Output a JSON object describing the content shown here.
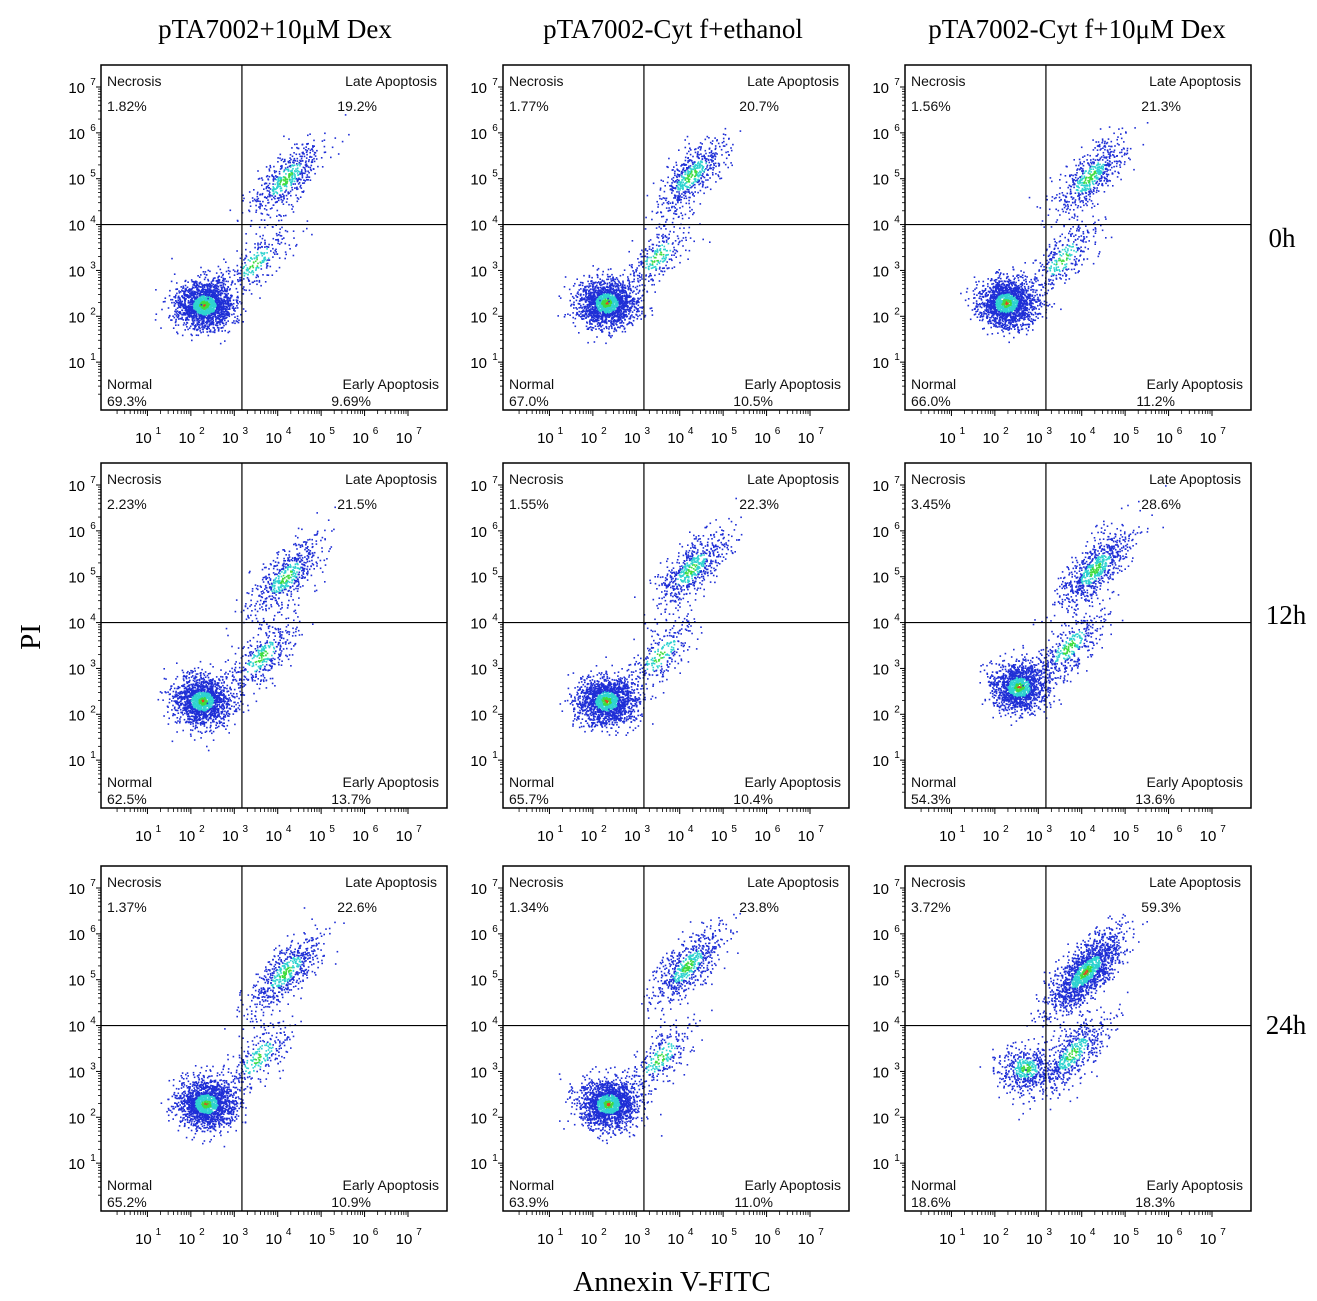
{
  "figure": {
    "column_titles": [
      "pTA7002+10μM Dex",
      "pTA7002-Cyt f+ethanol",
      "pTA7002-Cyt f+10μM Dex"
    ],
    "row_labels": [
      "0h",
      "12h",
      "24h"
    ],
    "ylabel": "PI",
    "xlabel": "Annexin V-FITC",
    "quadrant_names": {
      "top_left": "Necrosis",
      "top_right": "Late Apoptosis",
      "bottom_left": "Normal",
      "bottom_right": "Early Apoptosis"
    },
    "colors": {
      "low_density": "#1f2fd6",
      "mid_density": "#2fd3d0",
      "high_density": "#3fdc3f",
      "peak_density": "#e2451e",
      "frame": "#000000"
    }
  },
  "chart_data": [
    {
      "type": "scatter",
      "panel": "pTA7002+10μM Dex / 0h",
      "x_scale": "log",
      "y_scale": "log",
      "xlim": [
        1,
        10000000
      ],
      "ylim": [
        1,
        10000000
      ],
      "x_ticks": [
        10,
        100,
        1000,
        10000,
        100000,
        1000000,
        10000000
      ],
      "y_ticks": [
        10,
        100,
        1000,
        10000,
        100000,
        1000000,
        10000000
      ],
      "gate_x": 1500,
      "gate_y": 10000,
      "quadrants": {
        "necrosis": "1.82%",
        "late_apoptosis": "19.2%",
        "normal": "69.3%",
        "early_apoptosis": "9.69%"
      },
      "populations": [
        {
          "center": [
            200,
            180
          ],
          "share": 0.7
        },
        {
          "center": [
            15000,
            100000
          ],
          "share": 0.2
        },
        {
          "center": [
            3000,
            1500
          ],
          "share": 0.1
        }
      ]
    },
    {
      "type": "scatter",
      "panel": "pTA7002-Cyt f+ethanol / 0h",
      "x_scale": "log",
      "y_scale": "log",
      "xlim": [
        1,
        10000000
      ],
      "ylim": [
        1,
        10000000
      ],
      "x_ticks": [
        10,
        100,
        1000,
        10000,
        100000,
        1000000,
        10000000
      ],
      "y_ticks": [
        10,
        100,
        1000,
        10000,
        100000,
        1000000,
        10000000
      ],
      "gate_x": 1500,
      "gate_y": 10000,
      "quadrants": {
        "necrosis": "1.77%",
        "late_apoptosis": "20.7%",
        "normal": "67.0%",
        "early_apoptosis": "10.5%"
      },
      "populations": [
        {
          "center": [
            200,
            200
          ],
          "share": 0.67
        },
        {
          "center": [
            18000,
            120000
          ],
          "share": 0.22
        },
        {
          "center": [
            3000,
            2000
          ],
          "share": 0.11
        }
      ]
    },
    {
      "type": "scatter",
      "panel": "pTA7002-Cyt f+10μM Dex / 0h",
      "x_scale": "log",
      "y_scale": "log",
      "xlim": [
        1,
        10000000
      ],
      "ylim": [
        1,
        10000000
      ],
      "x_ticks": [
        10,
        100,
        1000,
        10000,
        100000,
        1000000,
        10000000
      ],
      "y_ticks": [
        10,
        100,
        1000,
        10000,
        100000,
        1000000,
        10000000
      ],
      "gate_x": 1500,
      "gate_y": 10000,
      "quadrants": {
        "necrosis": "1.56%",
        "late_apoptosis": "21.3%",
        "normal": "66.0%",
        "early_apoptosis": "11.2%"
      },
      "populations": [
        {
          "center": [
            180,
            200
          ],
          "share": 0.66
        },
        {
          "center": [
            15000,
            110000
          ],
          "share": 0.22
        },
        {
          "center": [
            3500,
            1800
          ],
          "share": 0.12
        }
      ]
    },
    {
      "type": "scatter",
      "panel": "pTA7002+10μM Dex / 12h",
      "x_scale": "log",
      "y_scale": "log",
      "xlim": [
        1,
        10000000
      ],
      "ylim": [
        1,
        10000000
      ],
      "x_ticks": [
        10,
        100,
        1000,
        10000,
        100000,
        1000000,
        10000000
      ],
      "y_ticks": [
        10,
        100,
        1000,
        10000,
        100000,
        1000000,
        10000000
      ],
      "gate_x": 1500,
      "gate_y": 10000,
      "quadrants": {
        "necrosis": "2.23%",
        "late_apoptosis": "21.5%",
        "normal": "62.5%",
        "early_apoptosis": "13.7%"
      },
      "populations": [
        {
          "center": [
            180,
            200
          ],
          "share": 0.63
        },
        {
          "center": [
            15000,
            100000
          ],
          "share": 0.22
        },
        {
          "center": [
            4000,
            1800
          ],
          "share": 0.15
        }
      ]
    },
    {
      "type": "scatter",
      "panel": "pTA7002-Cyt f+ethanol / 12h",
      "x_scale": "log",
      "y_scale": "log",
      "xlim": [
        1,
        10000000
      ],
      "ylim": [
        1,
        10000000
      ],
      "x_ticks": [
        10,
        100,
        1000,
        10000,
        100000,
        1000000,
        10000000
      ],
      "y_ticks": [
        10,
        100,
        1000,
        10000,
        100000,
        1000000,
        10000000
      ],
      "gate_x": 1500,
      "gate_y": 10000,
      "quadrants": {
        "necrosis": "1.55%",
        "late_apoptosis": "22.3%",
        "normal": "65.7%",
        "early_apoptosis": "10.4%"
      },
      "populations": [
        {
          "center": [
            200,
            200
          ],
          "share": 0.66
        },
        {
          "center": [
            18000,
            150000
          ],
          "share": 0.23
        },
        {
          "center": [
            3500,
            2000
          ],
          "share": 0.11
        }
      ]
    },
    {
      "type": "scatter",
      "panel": "pTA7002-Cyt f+10μM Dex / 12h",
      "x_scale": "log",
      "y_scale": "log",
      "xlim": [
        1,
        10000000
      ],
      "ylim": [
        1,
        10000000
      ],
      "x_ticks": [
        10,
        100,
        1000,
        10000,
        100000,
        1000000,
        10000000
      ],
      "y_ticks": [
        10,
        100,
        1000,
        10000,
        100000,
        1000000,
        10000000
      ],
      "gate_x": 1500,
      "gate_y": 10000,
      "quadrants": {
        "necrosis": "3.45%",
        "late_apoptosis": "28.6%",
        "normal": "54.3%",
        "early_apoptosis": "13.6%"
      },
      "populations": [
        {
          "center": [
            350,
            400
          ],
          "share": 0.55
        },
        {
          "center": [
            20000,
            150000
          ],
          "share": 0.29
        },
        {
          "center": [
            5000,
            3000
          ],
          "share": 0.16
        }
      ]
    },
    {
      "type": "scatter",
      "panel": "pTA7002+10μM Dex / 24h",
      "x_scale": "log",
      "y_scale": "log",
      "xlim": [
        1,
        10000000
      ],
      "ylim": [
        1,
        10000000
      ],
      "x_ticks": [
        10,
        100,
        1000,
        10000,
        100000,
        1000000,
        10000000
      ],
      "y_ticks": [
        10,
        100,
        1000,
        10000,
        100000,
        1000000,
        10000000
      ],
      "gate_x": 1500,
      "gate_y": 10000,
      "quadrants": {
        "necrosis": "1.37%",
        "late_apoptosis": "22.6%",
        "normal": "65.2%",
        "early_apoptosis": "10.9%"
      },
      "populations": [
        {
          "center": [
            220,
            200
          ],
          "share": 0.66
        },
        {
          "center": [
            15000,
            150000
          ],
          "share": 0.23
        },
        {
          "center": [
            3500,
            2000
          ],
          "share": 0.11
        }
      ]
    },
    {
      "type": "scatter",
      "panel": "pTA7002-Cyt f+ethanol / 24h",
      "x_scale": "log",
      "y_scale": "log",
      "xlim": [
        1,
        10000000
      ],
      "ylim": [
        1,
        10000000
      ],
      "x_ticks": [
        10,
        100,
        1000,
        10000,
        100000,
        1000000,
        10000000
      ],
      "y_ticks": [
        10,
        100,
        1000,
        10000,
        100000,
        1000000,
        10000000
      ],
      "gate_x": 1500,
      "gate_y": 10000,
      "quadrants": {
        "necrosis": "1.34%",
        "late_apoptosis": "23.8%",
        "normal": "63.9%",
        "early_apoptosis": "11.0%"
      },
      "populations": [
        {
          "center": [
            220,
            200
          ],
          "share": 0.65
        },
        {
          "center": [
            15000,
            200000
          ],
          "share": 0.24
        },
        {
          "center": [
            3500,
            2000
          ],
          "share": 0.11
        }
      ]
    },
    {
      "type": "scatter",
      "panel": "pTA7002-Cyt f+10μM Dex / 24h",
      "x_scale": "log",
      "y_scale": "log",
      "xlim": [
        1,
        10000000
      ],
      "ylim": [
        1,
        10000000
      ],
      "x_ticks": [
        10,
        100,
        1000,
        10000,
        100000,
        1000000,
        10000000
      ],
      "y_ticks": [
        10,
        100,
        1000,
        10000,
        100000,
        1000000,
        10000000
      ],
      "gate_x": 1500,
      "gate_y": 10000,
      "quadrants": {
        "necrosis": "3.72%",
        "late_apoptosis": "59.3%",
        "normal": "18.6%",
        "early_apoptosis": "18.3%"
      },
      "populations": [
        {
          "center": [
            500,
            1200
          ],
          "share": 0.19
        },
        {
          "center": [
            12000,
            150000
          ],
          "share": 0.6
        },
        {
          "center": [
            6000,
            2500
          ],
          "share": 0.21
        }
      ]
    }
  ]
}
